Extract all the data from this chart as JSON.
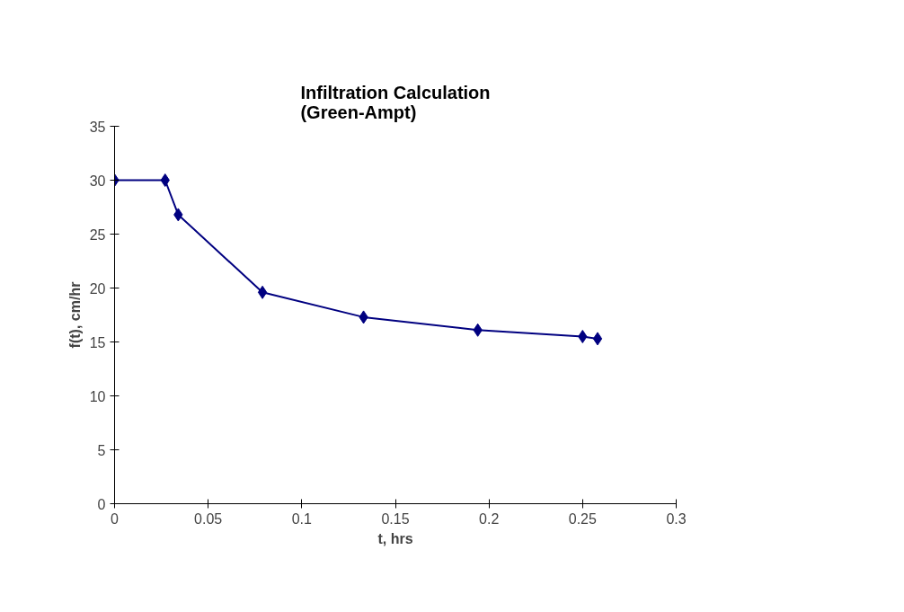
{
  "chart_data": {
    "type": "line",
    "title": "Infiltration Calculation\n(Green-Ampt)",
    "xlabel": "t, hrs",
    "ylabel": "f(t), cm/hr",
    "x": [
      0,
      0.027,
      0.034,
      0.079,
      0.133,
      0.194,
      0.25,
      0.258
    ],
    "series": [
      {
        "color": "#000080",
        "values": [
          30,
          30,
          26.8,
          19.6,
          17.3,
          16.1,
          15.5,
          15.3
        ]
      }
    ],
    "xlim": [
      0,
      0.3
    ],
    "xticks": [
      0,
      0.05,
      0.1,
      0.15,
      0.2,
      0.25,
      0.3
    ],
    "ylim": [
      0,
      35
    ],
    "yticks": [
      0,
      5,
      10,
      15,
      20,
      25,
      30,
      35
    ],
    "marker": "diamond",
    "line_style": "solid"
  }
}
